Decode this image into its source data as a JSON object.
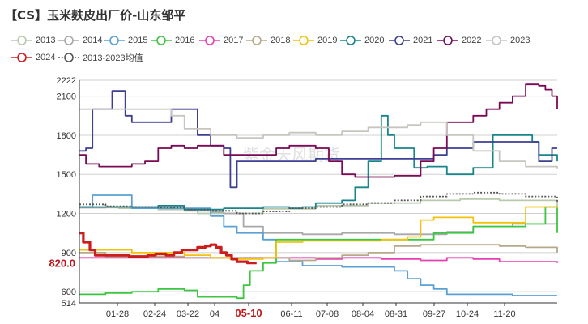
{
  "chart_data": {
    "type": "line",
    "title": "【CS】玉米麸皮出厂价-山东邹平",
    "watermark": "紫金天风期货",
    "x_ticks": [
      "01-28",
      "02-24",
      "03-22",
      "04",
      "05-10",
      "06-11",
      "07-08",
      "08-04",
      "08-31",
      "09-27",
      "10-24",
      "11-20"
    ],
    "highlight_x": "05-10",
    "y_ticks": [
      514.0,
      600.0,
      900.0,
      1200,
      1500,
      1800,
      2100,
      2222
    ],
    "highlight_y": 820.0,
    "ylim": [
      514,
      2222
    ],
    "x_range": [
      0,
      364
    ],
    "grid": "horizontal",
    "legend_position": "top",
    "series": [
      {
        "name": "2013",
        "color": "#b9c9ad",
        "dashed": false,
        "points": [
          [
            0,
            1245
          ],
          [
            30,
            1240
          ],
          [
            60,
            1230
          ],
          [
            90,
            1200
          ],
          [
            140,
            1235
          ],
          [
            180,
            1260
          ],
          [
            220,
            1280
          ],
          [
            260,
            1300
          ],
          [
            290,
            1310
          ],
          [
            320,
            1300
          ],
          [
            364,
            1230
          ]
        ]
      },
      {
        "name": "2014",
        "color": "#a8a8a8",
        "dashed": false,
        "points": [
          [
            0,
            1245
          ],
          [
            20,
            1250
          ],
          [
            40,
            1240
          ],
          [
            60,
            1250
          ],
          [
            80,
            1220
          ],
          [
            100,
            1210
          ],
          [
            110,
            1200
          ],
          [
            125,
            1100
          ],
          [
            140,
            1050
          ],
          [
            170,
            1040
          ],
          [
            200,
            1050
          ],
          [
            240,
            1040
          ],
          [
            280,
            1060
          ],
          [
            300,
            1100
          ],
          [
            330,
            1120
          ],
          [
            364,
            1130
          ]
        ]
      },
      {
        "name": "2015",
        "color": "#5aa0d4",
        "dashed": false,
        "points": [
          [
            0,
            1250
          ],
          [
            10,
            1340
          ],
          [
            30,
            1340
          ],
          [
            40,
            1240
          ],
          [
            60,
            1240
          ],
          [
            90,
            1240
          ],
          [
            100,
            1180
          ],
          [
            110,
            1100
          ],
          [
            120,
            1050
          ],
          [
            140,
            1000
          ],
          [
            150,
            830
          ],
          [
            170,
            800
          ],
          [
            200,
            790
          ],
          [
            230,
            790
          ],
          [
            240,
            760
          ],
          [
            250,
            700
          ],
          [
            260,
            650
          ],
          [
            270,
            620
          ],
          [
            280,
            580
          ],
          [
            300,
            580
          ],
          [
            330,
            570
          ],
          [
            364,
            570
          ]
        ]
      },
      {
        "name": "2016",
        "color": "#3cc642",
        "dashed": false,
        "points": [
          [
            0,
            580
          ],
          [
            20,
            590
          ],
          [
            40,
            600
          ],
          [
            60,
            620
          ],
          [
            80,
            610
          ],
          [
            90,
            560
          ],
          [
            110,
            560
          ],
          [
            120,
            550
          ],
          [
            125,
            650
          ],
          [
            130,
            760
          ],
          [
            140,
            820
          ],
          [
            150,
            1000
          ],
          [
            170,
            1000
          ],
          [
            190,
            1000
          ],
          [
            210,
            1000
          ],
          [
            230,
            1000
          ],
          [
            250,
            1000
          ],
          [
            270,
            1050
          ],
          [
            300,
            1100
          ],
          [
            320,
            1100
          ],
          [
            340,
            1120
          ],
          [
            355,
            1250
          ],
          [
            364,
            1050
          ]
        ]
      },
      {
        "name": "2017",
        "color": "#e83fb1",
        "dashed": false,
        "points": [
          [
            0,
            860
          ],
          [
            60,
            860
          ],
          [
            120,
            860
          ],
          [
            180,
            850
          ],
          [
            200,
            860
          ],
          [
            210,
            860
          ],
          [
            230,
            850
          ],
          [
            260,
            840
          ],
          [
            280,
            860
          ],
          [
            300,
            850
          ],
          [
            320,
            830
          ],
          [
            340,
            830
          ],
          [
            364,
            820
          ]
        ]
      },
      {
        "name": "2018",
        "color": "#b5a98a",
        "dashed": false,
        "points": [
          [
            0,
            900
          ],
          [
            20,
            870
          ],
          [
            40,
            870
          ],
          [
            60,
            870
          ],
          [
            80,
            860
          ],
          [
            100,
            860
          ],
          [
            120,
            860
          ],
          [
            140,
            860
          ],
          [
            160,
            840
          ],
          [
            180,
            860
          ],
          [
            200,
            880
          ],
          [
            220,
            900
          ],
          [
            240,
            950
          ],
          [
            260,
            960
          ],
          [
            280,
            960
          ],
          [
            300,
            960
          ],
          [
            320,
            950
          ],
          [
            340,
            940
          ],
          [
            364,
            900
          ]
        ]
      },
      {
        "name": "2019",
        "color": "#f2c20f",
        "dashed": false,
        "points": [
          [
            0,
            920
          ],
          [
            20,
            920
          ],
          [
            40,
            900
          ],
          [
            60,
            900
          ],
          [
            80,
            880
          ],
          [
            100,
            860
          ],
          [
            115,
            850
          ],
          [
            125,
            850
          ],
          [
            140,
            860
          ],
          [
            150,
            980
          ],
          [
            170,
            990
          ],
          [
            190,
            990
          ],
          [
            210,
            990
          ],
          [
            230,
            1000
          ],
          [
            250,
            1020
          ],
          [
            260,
            1150
          ],
          [
            270,
            1170
          ],
          [
            290,
            1170
          ],
          [
            300,
            1130
          ],
          [
            310,
            1130
          ],
          [
            330,
            1130
          ],
          [
            340,
            1250
          ],
          [
            364,
            1240
          ]
        ]
      },
      {
        "name": "2020",
        "color": "#17858a",
        "dashed": false,
        "points": [
          [
            0,
            1250
          ],
          [
            30,
            1250
          ],
          [
            60,
            1260
          ],
          [
            80,
            1230
          ],
          [
            110,
            1240
          ],
          [
            140,
            1250
          ],
          [
            160,
            1240
          ],
          [
            170,
            1250
          ],
          [
            180,
            1280
          ],
          [
            200,
            1300
          ],
          [
            210,
            1400
          ],
          [
            220,
            1600
          ],
          [
            230,
            1950
          ],
          [
            235,
            1800
          ],
          [
            240,
            1700
          ],
          [
            250,
            1700
          ],
          [
            255,
            1550
          ],
          [
            265,
            1560
          ],
          [
            280,
            1500
          ],
          [
            290,
            1500
          ],
          [
            300,
            1550
          ],
          [
            315,
            1800
          ],
          [
            330,
            1800
          ],
          [
            345,
            1750
          ],
          [
            350,
            1650
          ],
          [
            364,
            1600
          ]
        ]
      },
      {
        "name": "2021",
        "color": "#3d3f92",
        "dashed": false,
        "points": [
          [
            0,
            1680
          ],
          [
            5,
            1700
          ],
          [
            10,
            2000
          ],
          [
            20,
            2000
          ],
          [
            25,
            2140
          ],
          [
            30,
            2140
          ],
          [
            35,
            1950
          ],
          [
            40,
            1900
          ],
          [
            50,
            1900
          ],
          [
            60,
            1900
          ],
          [
            70,
            2000
          ],
          [
            80,
            2000
          ],
          [
            90,
            1800
          ],
          [
            100,
            1720
          ],
          [
            110,
            1700
          ],
          [
            115,
            1400
          ],
          [
            120,
            1600
          ],
          [
            130,
            1600
          ],
          [
            140,
            1600
          ],
          [
            160,
            1600
          ],
          [
            180,
            1620
          ],
          [
            200,
            1620
          ],
          [
            220,
            1620
          ],
          [
            240,
            1620
          ],
          [
            260,
            1620
          ],
          [
            270,
            1650
          ],
          [
            280,
            1700
          ],
          [
            290,
            1700
          ],
          [
            300,
            1750
          ],
          [
            320,
            1750
          ],
          [
            340,
            1750
          ],
          [
            350,
            1600
          ],
          [
            360,
            1700
          ],
          [
            364,
            1700
          ]
        ]
      },
      {
        "name": "2022",
        "color": "#7a0a55",
        "dashed": false,
        "points": [
          [
            0,
            1650
          ],
          [
            5,
            1580
          ],
          [
            15,
            1560
          ],
          [
            30,
            1560
          ],
          [
            40,
            1580
          ],
          [
            50,
            1600
          ],
          [
            60,
            1700
          ],
          [
            70,
            1720
          ],
          [
            80,
            1700
          ],
          [
            90,
            1720
          ],
          [
            100,
            1720
          ],
          [
            110,
            1650
          ],
          [
            140,
            1650
          ],
          [
            150,
            1700
          ],
          [
            160,
            1720
          ],
          [
            170,
            1720
          ],
          [
            180,
            1700
          ],
          [
            190,
            1600
          ],
          [
            200,
            1500
          ],
          [
            210,
            1480
          ],
          [
            230,
            1480
          ],
          [
            240,
            1490
          ],
          [
            260,
            1600
          ],
          [
            270,
            1700
          ],
          [
            280,
            1900
          ],
          [
            300,
            1950
          ],
          [
            310,
            2000
          ],
          [
            320,
            2050
          ],
          [
            330,
            2100
          ],
          [
            340,
            2190
          ],
          [
            350,
            2180
          ],
          [
            355,
            2150
          ],
          [
            360,
            2100
          ],
          [
            364,
            2000
          ]
        ]
      },
      {
        "name": "2023",
        "color": "#c7c5bf",
        "dashed": false,
        "points": [
          [
            0,
            2000
          ],
          [
            20,
            2000
          ],
          [
            40,
            2000
          ],
          [
            60,
            2000
          ],
          [
            70,
            1950
          ],
          [
            80,
            1850
          ],
          [
            100,
            1800
          ],
          [
            120,
            1780
          ],
          [
            140,
            1800
          ],
          [
            160,
            1820
          ],
          [
            180,
            1800
          ],
          [
            200,
            1830
          ],
          [
            220,
            1860
          ],
          [
            240,
            1860
          ],
          [
            250,
            1880
          ],
          [
            260,
            1900
          ],
          [
            270,
            1900
          ],
          [
            280,
            1800
          ],
          [
            300,
            1680
          ],
          [
            320,
            1600
          ],
          [
            340,
            1560
          ],
          [
            350,
            1560
          ],
          [
            364,
            1540
          ]
        ]
      },
      {
        "name": "2024",
        "color": "#cc1d1d",
        "dashed": false,
        "points": [
          [
            0,
            1050
          ],
          [
            3,
            980
          ],
          [
            8,
            920
          ],
          [
            12,
            880
          ],
          [
            16,
            880
          ],
          [
            24,
            880
          ],
          [
            30,
            880
          ],
          [
            38,
            870
          ],
          [
            44,
            870
          ],
          [
            52,
            880
          ],
          [
            58,
            890
          ],
          [
            62,
            890
          ],
          [
            66,
            880
          ],
          [
            72,
            900
          ],
          [
            78,
            920
          ],
          [
            84,
            920
          ],
          [
            90,
            940
          ],
          [
            96,
            950
          ],
          [
            100,
            960
          ],
          [
            104,
            940
          ],
          [
            108,
            900
          ],
          [
            112,
            880
          ],
          [
            116,
            850
          ],
          [
            120,
            830
          ],
          [
            124,
            830
          ],
          [
            128,
            820
          ],
          [
            132,
            820
          ],
          [
            135,
            820
          ]
        ]
      },
      {
        "name": "2013-2023均值",
        "color": "#555555",
        "dashed": true,
        "points": [
          [
            0,
            1270
          ],
          [
            20,
            1255
          ],
          [
            40,
            1250
          ],
          [
            60,
            1245
          ],
          [
            80,
            1230
          ],
          [
            100,
            1220
          ],
          [
            120,
            1200
          ],
          [
            140,
            1215
          ],
          [
            160,
            1240
          ],
          [
            180,
            1250
          ],
          [
            200,
            1270
          ],
          [
            220,
            1280
          ],
          [
            240,
            1300
          ],
          [
            260,
            1330
          ],
          [
            280,
            1350
          ],
          [
            300,
            1360
          ],
          [
            320,
            1350
          ],
          [
            340,
            1330
          ],
          [
            364,
            1280
          ]
        ]
      }
    ]
  }
}
